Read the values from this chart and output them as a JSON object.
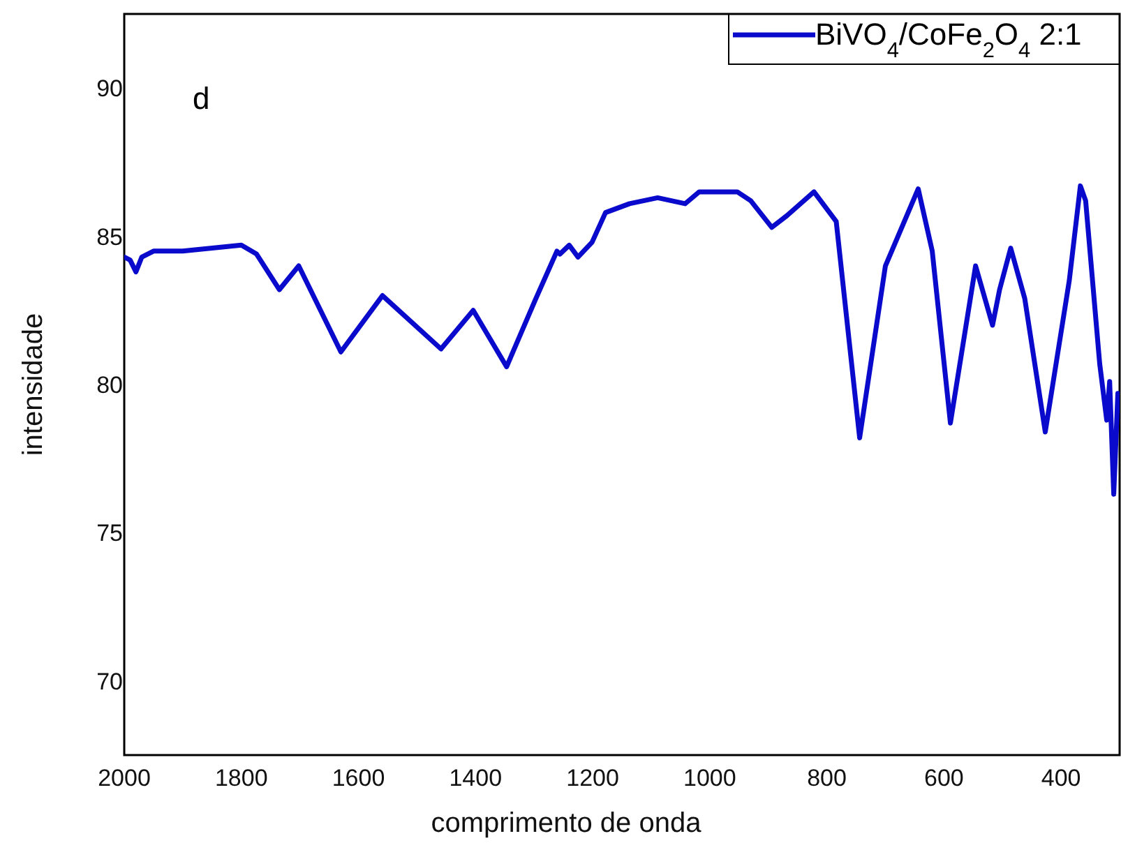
{
  "chart_data": {
    "type": "line",
    "xlabel": "comprimento de onda",
    "ylabel": "intensidade",
    "annotations": [
      "d"
    ],
    "xlim": [
      2000,
      300
    ],
    "xticks": [
      2000,
      1800,
      1600,
      1400,
      1200,
      1000,
      800,
      600,
      400
    ],
    "ylim": [
      67.5,
      92.5
    ],
    "yticks": [
      70,
      75,
      80,
      85,
      90
    ],
    "grid": false,
    "legend": "top right",
    "marker": "none",
    "line_style": "solid",
    "series": [
      {
        "name": "BiVO$_{4}$/CoFe$_{2}$O$_{4}$ 2:1",
        "color": "#0a0acc",
        "x": [
          2000,
          1990,
          1980,
          1970,
          1950,
          1900,
          1850,
          1800,
          1774,
          1735,
          1702,
          1630,
          1559,
          1459,
          1404,
          1347,
          1297,
          1261,
          1256,
          1240,
          1225,
          1201,
          1178,
          1137,
          1089,
          1042,
          1018,
          953,
          930,
          894,
          868,
          822,
          784,
          744,
          700,
          644,
          620,
          589,
          546,
          517,
          505,
          486,
          462,
          427,
          386,
          367,
          358,
          334,
          322,
          317,
          310,
          303,
          300
        ],
        "values": [
          84.3,
          84.2,
          83.8,
          84.3,
          84.5,
          84.5,
          84.6,
          84.7,
          84.4,
          83.2,
          84.0,
          81.1,
          83.0,
          81.2,
          82.5,
          80.6,
          82.9,
          84.5,
          84.4,
          84.7,
          84.3,
          84.8,
          85.8,
          86.1,
          86.3,
          86.1,
          86.5,
          86.5,
          86.2,
          85.3,
          85.7,
          86.5,
          85.5,
          78.2,
          84.0,
          86.6,
          84.5,
          78.7,
          84.0,
          82.0,
          83.2,
          84.6,
          82.9,
          78.4,
          83.5,
          86.7,
          86.2,
          80.7,
          78.8,
          80.1,
          76.3,
          79.7,
          79.5
        ]
      }
    ]
  }
}
